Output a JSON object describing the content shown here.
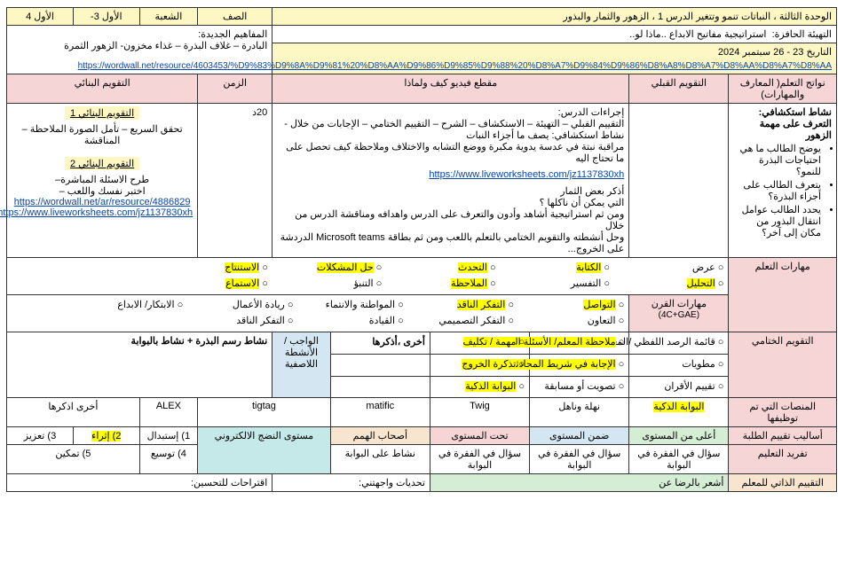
{
  "header": {
    "unit_title": "الوحدة الثالثة ، النباتات تنمو وتتغير  الدرس 1 ،  الزهور والثمار والبذور",
    "class_label": "الصف",
    "section_label": "الشعبة",
    "period1_label": "الأول 3-",
    "period2_label": "الأول 4",
    "stim_label": "التهيئة الحافزة:",
    "stim_value": "استراتيجية مفاتيح الابداع ..ماذا لو..",
    "concepts_label": "المفاهيم الجديدة:",
    "concepts_value": "البادرة – غلاف البذرة – غذاء مخزون- الزهور الثمرة",
    "date_label": "التاريخ 23 -  26 سبتمبر 2024",
    "date_link": "https://wordwall.net/resource/4603453/%D9%83%D9%8A%D9%81%20%D8%AA%D9%86%D9%85%D9%88%20%D8%A7%D9%84%D9%86%D8%A8%D8%A7%D8%AA%D8%A7%D8%AA"
  },
  "cols": {
    "outcomes": "نواتج التعلم( المعارف والمهارات)",
    "preassess": "التقويم القبلي",
    "vidclip": "مقطع فيديو كيف ولماذا",
    "time": "الزمن",
    "formative": "التقويم البنائي"
  },
  "outcomes": {
    "title": "نشاط استكشافي:",
    "line1": "التعرف على مهمة الزهور",
    "b1": "يوضح الطالب ما هي احتياجات البذرة للنمو؟",
    "b2": "يتعرف الطالب على أجزاء البذرة؟",
    "b3": "يحدد الطالب عوامل انتقال البذور من مكان إلى آخر؟"
  },
  "lesson": {
    "proc_title": "إجراءات الدرس:",
    "proc1": "التقييم القبلي – التهيئة – الاستكشاف – الشرح – التقييم الختامي – الإجابات من خلال          -",
    "proc2": "نشاط استكشافي: يصف ما أجزاء النبات",
    "proc3": "مراقبة نبتة في عدسة يدوية مكبرة ووضع التشابه والاختلاف وملاحظة كيف تحصل على ما تحتاج اليه",
    "link1": "https://www.liveworksheets.com/jz1137830xh",
    "fruits_title": "أذكر بعض الثمار",
    "fruits_q": "التي يمكن أن ناكلها ؟",
    "proc4": "ومن ثم استراتيجية أشاهد وأدون والتعرف على الدرس واهدافه ومناقشة الدرس من خلال",
    "proc5": "وحل أنشطته والتقويم الختامي بالتعلم باللعب ومن ثم بطاقة Microsoft teams  الدردشة على الخروج..."
  },
  "time_val": "20د",
  "formative": {
    "t1": "التقويم البنائي 1",
    "t1a": "تحقق السريع – تأمل الصورة الملاحظة –  المناقشة",
    "t2": "التقويم البنائي 2",
    "t2a": "طرح الاسئلة  المباشرة–",
    "t2b": "اختبر نفسك واللعب –",
    "link1": "https://wordwall.net/ar/resource/4886829",
    "link2": "https://www.liveworksheets.com/jz1137830xh"
  },
  "skills": {
    "learn_label": "مهارات التعلم",
    "learn_items": [
      "عرض",
      "الكتابة",
      "التحدث",
      "حل المشكلات",
      "الاستنتاج",
      "التحليل",
      "التفسير",
      "الملاحظة",
      "التنبؤ",
      "الاستماع"
    ],
    "century_label": "مهارات القرن",
    "century_sub": "(4C+GAE)",
    "century_items": [
      "التواصل",
      "التفكر الناقد",
      "المواطنة والانتماء",
      "ريادة الأعمال",
      "الابتكار/ الابداع",
      "التعاون",
      "التفكر التصميمي",
      "القيادة",
      "التفكر الناقد"
    ],
    "final_label": "التقويم الختامي",
    "final_r1": [
      "قائمة الرصد اللفظي /المعرفي",
      "ملاحظة المعلم/ الأسئلة السابرة",
      "مهمة / تكليف",
      "أخرى ،أذكرها",
      "الواجب / الأنشطة اللاصفية",
      "نشاط    رسم البذرة  + نشاط بالبوابة"
    ],
    "final_r2": [
      "مطويات",
      "الإجابة في شريط المحادثة",
      "تذكرة الخروج"
    ],
    "final_r3": [
      "تقييم الأقران",
      "تصويت أو مسابقة",
      "البوابة الذكية"
    ],
    "platforms_label": "المنصات التي تم توظيفها",
    "platforms": [
      "البوابة الذكية",
      "نهلة وناهل",
      "Twig",
      "matific",
      "tigtag",
      "ALEX",
      "أخرى اذكرها"
    ],
    "assess_label": "أساليب تقييم الطلبة",
    "assess_items": [
      "أعلى من المستوى",
      "ضمن المستوى",
      "تحت المستوى",
      "أصحاب الهمم",
      "مستوى النضج الالكتروني",
      "1) إستبدال",
      "2) إثراء",
      "3) تعزيز"
    ],
    "diff_label": "تفريد التعليم",
    "diff_items": [
      "سؤال في الفقرة في البوابة",
      "سؤال في الفقرة في البوابة",
      "سؤال في الفقرة في البوابة",
      "نشاط على البوابة",
      "",
      "4) توسيع",
      "5) تمكين"
    ],
    "self_label": "التقييم الذاتي للمعلم",
    "self_items": [
      "أشعر بالرضا عن",
      "تحديات واجهتني:",
      "اقتراحات للتحسين:"
    ]
  }
}
